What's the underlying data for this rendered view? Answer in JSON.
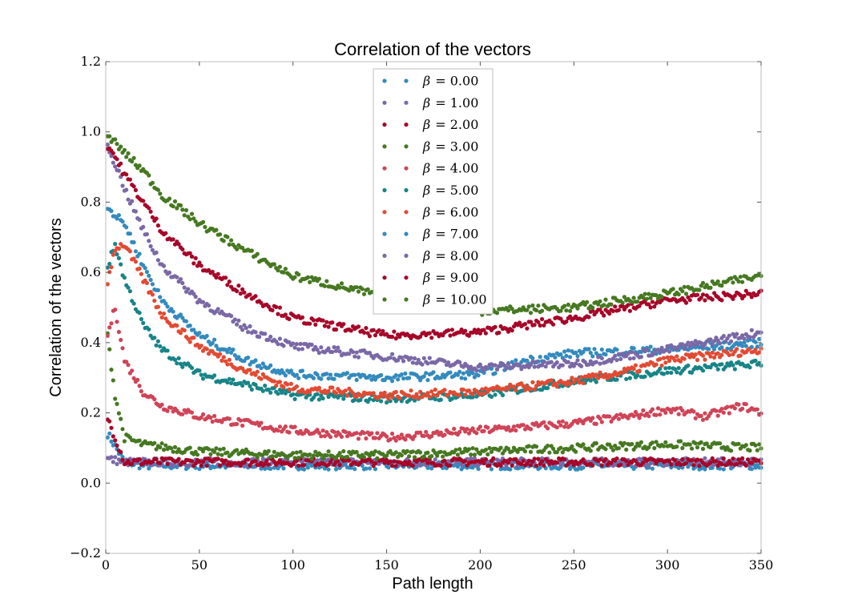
{
  "chart_data": {
    "type": "scatter",
    "title": "Correlation of the vectors",
    "xlabel": "Path length",
    "ylabel": "Correlation of the vectors",
    "xlim": [
      0,
      350
    ],
    "ylim": [
      -0.2,
      1.2
    ],
    "xticks": [
      "0",
      "50",
      "100",
      "150",
      "200",
      "250",
      "300",
      "350"
    ],
    "yticks": [
      "−0.2",
      "0.0",
      "0.2",
      "0.4",
      "0.6",
      "0.8",
      "1.0",
      "1.2"
    ],
    "xtick_values": [
      0,
      50,
      100,
      150,
      200,
      250,
      300,
      350
    ],
    "ytick_values": [
      -0.2,
      0,
      0.2,
      0.4,
      0.6,
      0.8,
      1.0,
      1.2
    ],
    "legend_position": "top-center",
    "grid": false,
    "series": [
      {
        "name": "β = 0.00",
        "label_var": "β",
        "label_val": "= 0.00",
        "color": "#348ABD",
        "x": [
          0,
          10,
          20,
          50,
          100,
          150,
          200,
          250,
          300,
          350
        ],
        "y": [
          0.15,
          0.06,
          0.05,
          0.05,
          0.05,
          0.05,
          0.05,
          0.05,
          0.05,
          0.05
        ]
      },
      {
        "name": "β = 1.00",
        "label_var": "β",
        "label_val": "= 1.00",
        "color": "#7A68A6",
        "x": [
          0,
          10,
          20,
          50,
          100,
          150,
          200,
          250,
          300,
          350
        ],
        "y": [
          0.07,
          0.06,
          0.06,
          0.06,
          0.06,
          0.06,
          0.06,
          0.06,
          0.06,
          0.06
        ]
      },
      {
        "name": "β = 2.00",
        "label_var": "β",
        "label_val": "= 2.00",
        "color": "#A60628",
        "x": [
          0,
          10,
          20,
          50,
          100,
          150,
          200,
          250,
          300,
          350
        ],
        "y": [
          0.2,
          0.06,
          0.06,
          0.06,
          0.06,
          0.06,
          0.06,
          0.06,
          0.06,
          0.06
        ]
      },
      {
        "name": "β = 3.00",
        "label_var": "β",
        "label_val": "= 3.00",
        "color": "#467821",
        "x": [
          0,
          5,
          10,
          20,
          50,
          100,
          150,
          200,
          250,
          300,
          350
        ],
        "y": [
          0.46,
          0.25,
          0.13,
          0.11,
          0.09,
          0.08,
          0.08,
          0.09,
          0.1,
          0.11,
          0.1
        ]
      },
      {
        "name": "β = 4.00",
        "label_var": "β",
        "label_val": "= 4.00",
        "color": "#CF4457",
        "x": [
          0,
          5,
          10,
          20,
          30,
          50,
          100,
          150,
          200,
          250,
          280,
          300,
          320,
          340,
          350
        ],
        "y": [
          0.4,
          0.5,
          0.35,
          0.26,
          0.22,
          0.19,
          0.15,
          0.13,
          0.15,
          0.17,
          0.19,
          0.21,
          0.19,
          0.22,
          0.2
        ]
      },
      {
        "name": "β = 5.00",
        "label_var": "β",
        "label_val": "= 5.00",
        "color": "#188487",
        "x": [
          0,
          5,
          10,
          20,
          30,
          50,
          75,
          100,
          150,
          200,
          250,
          300,
          350
        ],
        "y": [
          0.6,
          0.68,
          0.58,
          0.45,
          0.38,
          0.31,
          0.28,
          0.25,
          0.24,
          0.25,
          0.29,
          0.32,
          0.34
        ]
      },
      {
        "name": "β = 6.00",
        "label_var": "β",
        "label_val": "= 6.00",
        "color": "#E24A33",
        "x": [
          0,
          5,
          10,
          20,
          30,
          50,
          75,
          100,
          150,
          200,
          250,
          280,
          300,
          350
        ],
        "y": [
          0.55,
          0.67,
          0.68,
          0.58,
          0.48,
          0.39,
          0.32,
          0.27,
          0.25,
          0.26,
          0.29,
          0.32,
          0.35,
          0.38
        ]
      },
      {
        "name": "β = 7.00",
        "label_var": "β",
        "label_val": "= 7.00",
        "color": "#348ABD",
        "x": [
          0,
          5,
          10,
          20,
          30,
          50,
          75,
          100,
          150,
          200,
          225,
          250,
          300,
          350
        ],
        "y": [
          0.8,
          0.76,
          0.74,
          0.62,
          0.52,
          0.42,
          0.35,
          0.31,
          0.3,
          0.31,
          0.35,
          0.37,
          0.38,
          0.4
        ]
      },
      {
        "name": "β = 8.00",
        "label_var": "β",
        "label_val": "= 8.00",
        "color": "#7A68A6",
        "x": [
          0,
          5,
          10,
          20,
          30,
          50,
          75,
          100,
          150,
          200,
          250,
          300,
          350
        ],
        "y": [
          0.97,
          0.91,
          0.84,
          0.72,
          0.62,
          0.52,
          0.44,
          0.39,
          0.36,
          0.33,
          0.34,
          0.38,
          0.43
        ]
      },
      {
        "name": "β = 9.00",
        "label_var": "β",
        "label_val": "= 9.00",
        "color": "#A60628",
        "x": [
          0,
          5,
          10,
          20,
          30,
          50,
          75,
          100,
          150,
          200,
          250,
          300,
          350
        ],
        "y": [
          0.97,
          0.93,
          0.88,
          0.8,
          0.72,
          0.62,
          0.54,
          0.47,
          0.42,
          0.43,
          0.47,
          0.52,
          0.54
        ]
      },
      {
        "name": "β = 10.00",
        "label_var": "β",
        "label_val": "= 10.00",
        "color": "#467821",
        "x": [
          0,
          5,
          10,
          20,
          30,
          50,
          75,
          100,
          150,
          200,
          250,
          300,
          350
        ],
        "y": [
          0.99,
          0.97,
          0.94,
          0.89,
          0.82,
          0.74,
          0.66,
          0.59,
          0.53,
          0.49,
          0.5,
          0.54,
          0.59
        ]
      }
    ]
  }
}
